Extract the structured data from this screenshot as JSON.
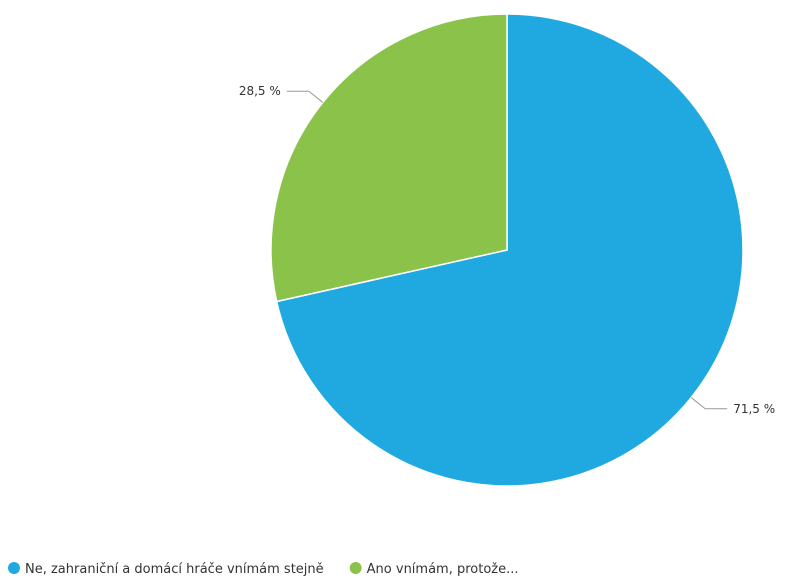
{
  "chart_data": {
    "type": "pie",
    "series": [
      {
        "name": "Ne, zahraniční a domácí hráče vnímám stejně",
        "value": 71.5,
        "label": "71,5 %",
        "color": "#20a8e0"
      },
      {
        "name": "Ano vnímám, protože...",
        "value": 28.5,
        "label": "28,5 %",
        "color": "#8bc34a"
      }
    ],
    "start_angle_deg": 0,
    "direction": "clockwise",
    "legend": "bottom-left"
  }
}
